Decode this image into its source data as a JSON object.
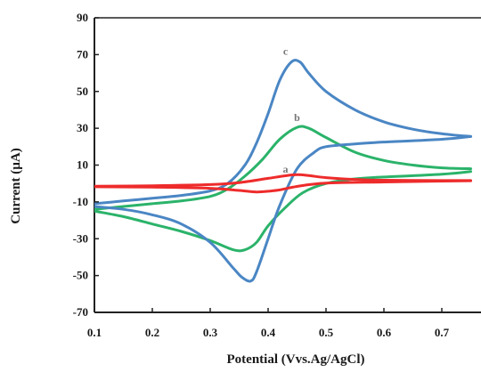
{
  "chart_data": {
    "type": "line",
    "title": "",
    "xlabel": "Potential (Vvs.Ag/AgCl)",
    "ylabel": "Current (µA)",
    "xlim": [
      0.1,
      0.75
    ],
    "ylim": [
      -70,
      90
    ],
    "x_ticks": [
      "0.1",
      "0.2",
      "0.3",
      "0.4",
      "0.5",
      "0.6",
      "0.7"
    ],
    "y_ticks": [
      "90",
      "70",
      "50",
      "30",
      "10",
      "-10",
      "-30",
      "-50",
      "-70"
    ],
    "grid": false,
    "legend": "none",
    "series": [
      {
        "name": "a",
        "color": "#ee2b2b",
        "label_at": [
          0.43,
          6
        ],
        "forward": [
          [
            0.1,
            -1.5
          ],
          [
            0.2,
            -1.2
          ],
          [
            0.3,
            -0.6
          ],
          [
            0.35,
            0.5
          ],
          [
            0.4,
            2.8
          ],
          [
            0.43,
            4.2
          ],
          [
            0.45,
            4.8
          ],
          [
            0.47,
            4.3
          ],
          [
            0.5,
            3.2
          ],
          [
            0.55,
            2.2
          ],
          [
            0.6,
            1.8
          ],
          [
            0.7,
            1.6
          ],
          [
            0.75,
            1.6
          ]
        ],
        "reverse": [
          [
            0.75,
            1.5
          ],
          [
            0.7,
            1.3
          ],
          [
            0.6,
            0.8
          ],
          [
            0.5,
            0.2
          ],
          [
            0.45,
            -1.6
          ],
          [
            0.42,
            -3.5
          ],
          [
            0.4,
            -4.2
          ],
          [
            0.38,
            -4.6
          ],
          [
            0.35,
            -3.8
          ],
          [
            0.3,
            -2.6
          ],
          [
            0.2,
            -2.0
          ],
          [
            0.1,
            -1.8
          ]
        ]
      },
      {
        "name": "b",
        "color": "#2bb36a",
        "label_at": [
          0.45,
          34
        ],
        "forward": [
          [
            0.1,
            -14
          ],
          [
            0.15,
            -12.5
          ],
          [
            0.2,
            -11
          ],
          [
            0.25,
            -9.5
          ],
          [
            0.3,
            -7
          ],
          [
            0.33,
            -3
          ],
          [
            0.36,
            4
          ],
          [
            0.39,
            13
          ],
          [
            0.42,
            24
          ],
          [
            0.45,
            30.5
          ],
          [
            0.47,
            30
          ],
          [
            0.5,
            25
          ],
          [
            0.55,
            17
          ],
          [
            0.6,
            12.5
          ],
          [
            0.65,
            10
          ],
          [
            0.7,
            8.5
          ],
          [
            0.75,
            8
          ]
        ],
        "reverse": [
          [
            0.75,
            6.5
          ],
          [
            0.7,
            5
          ],
          [
            0.6,
            3.5
          ],
          [
            0.55,
            2.5
          ],
          [
            0.5,
            0
          ],
          [
            0.46,
            -5
          ],
          [
            0.43,
            -13
          ],
          [
            0.4,
            -23
          ],
          [
            0.38,
            -32
          ],
          [
            0.36,
            -36
          ],
          [
            0.34,
            -36
          ],
          [
            0.3,
            -31
          ],
          [
            0.25,
            -26
          ],
          [
            0.2,
            -22
          ],
          [
            0.15,
            -18
          ],
          [
            0.1,
            -15
          ]
        ]
      },
      {
        "name": "c",
        "color": "#4a86c4",
        "label_at": [
          0.43,
          70
        ],
        "forward": [
          [
            0.1,
            -11
          ],
          [
            0.15,
            -9.5
          ],
          [
            0.2,
            -8
          ],
          [
            0.25,
            -6.5
          ],
          [
            0.3,
            -4
          ],
          [
            0.33,
            0
          ],
          [
            0.36,
            10
          ],
          [
            0.38,
            22
          ],
          [
            0.4,
            38
          ],
          [
            0.42,
            56
          ],
          [
            0.44,
            66
          ],
          [
            0.455,
            66
          ],
          [
            0.47,
            60
          ],
          [
            0.5,
            50
          ],
          [
            0.55,
            40
          ],
          [
            0.6,
            33.5
          ],
          [
            0.65,
            29.5
          ],
          [
            0.7,
            27
          ],
          [
            0.75,
            25.5
          ]
        ],
        "reverse": [
          [
            0.75,
            25.5
          ],
          [
            0.7,
            24
          ],
          [
            0.6,
            22.5
          ],
          [
            0.55,
            21.5
          ],
          [
            0.5,
            20
          ],
          [
            0.48,
            17
          ],
          [
            0.45,
            8
          ],
          [
            0.42,
            -12
          ],
          [
            0.4,
            -30
          ],
          [
            0.38,
            -48
          ],
          [
            0.37,
            -53
          ],
          [
            0.355,
            -51
          ],
          [
            0.34,
            -46
          ],
          [
            0.3,
            -32
          ],
          [
            0.25,
            -22
          ],
          [
            0.2,
            -17
          ],
          [
            0.15,
            -14
          ],
          [
            0.1,
            -12.5
          ]
        ]
      }
    ]
  }
}
